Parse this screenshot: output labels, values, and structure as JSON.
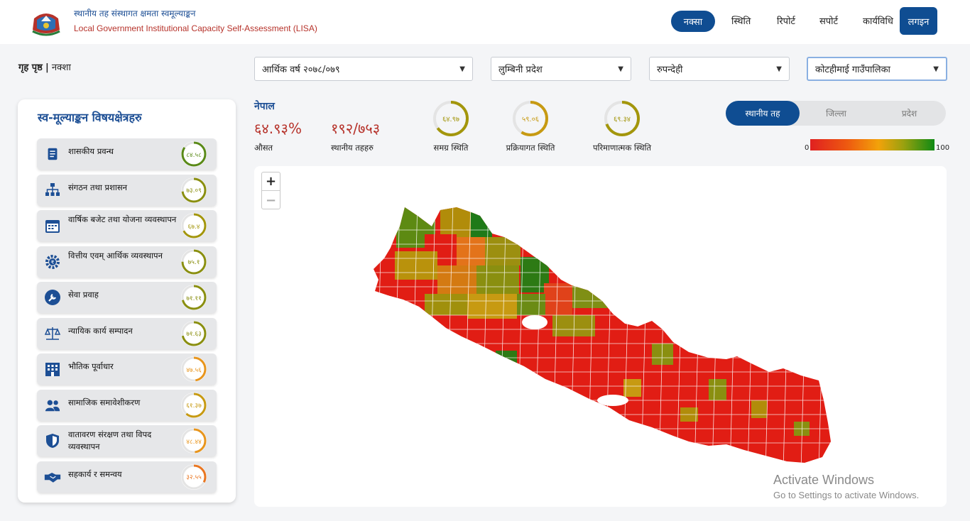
{
  "header": {
    "brand_np": "स्थानीय तह संस्थागत क्षमता स्वमूल्याङ्कन",
    "brand_en": "Local Government Institutional Capacity Self-Assessment (LISA)",
    "nav": [
      "नक्सा",
      "स्थिति",
      "रिपोर्ट",
      "सपोर्ट",
      "कार्यविधि"
    ],
    "login": "लगइन"
  },
  "breadcrumb": {
    "home": "गृह पृष्ठ",
    "sep": "|",
    "current": "नक्शा"
  },
  "filters": {
    "fiscal_year": "आर्थिक वर्ष २०७८/०७९",
    "province": "लुम्बिनी प्रदेश",
    "district": "रुपन्देही",
    "municipality": "कोटहीमाई गाउँपालिका"
  },
  "panel": {
    "title": "स्व-मूल्याङ्कन विषयक्षेत्रहरु",
    "items": [
      {
        "label": "शासकीय प्रवन्ध",
        "value": "८४.५८",
        "pct": 84.58,
        "color": "#5a8a18",
        "icon": "document-list-icon"
      },
      {
        "label": "संगठन तथा प्रशासन",
        "value": "७३.०९",
        "pct": 73.09,
        "color": "#8a8f10",
        "icon": "org-chart-icon"
      },
      {
        "label": "वार्षिक बजेट तथा योजना व्यवस्थापन",
        "value": "६७.४",
        "pct": 67.4,
        "color": "#a3960c",
        "icon": "calendar-icon"
      },
      {
        "label": "वित्तीय एवम् आर्थिक व्यवस्थापन",
        "value": "७५.१",
        "pct": 75.1,
        "color": "#8a8f10",
        "icon": "finance-gear-icon"
      },
      {
        "label": "सेवा प्रवाह",
        "value": "७१.११",
        "pct": 71.11,
        "color": "#8a8f10",
        "icon": "wrench-icon"
      },
      {
        "label": "न्यायिक कार्य सम्पादन",
        "value": "७१.६३",
        "pct": 71.63,
        "color": "#8a8f10",
        "icon": "scales-icon"
      },
      {
        "label": "भौतिक पूर्वाधार",
        "value": "४७.५६",
        "pct": 47.56,
        "color": "#e8951c",
        "icon": "building-icon"
      },
      {
        "label": "सामाजिक समावेशीकरण",
        "value": "६१.३७",
        "pct": 61.37,
        "color": "#c79a12",
        "icon": "people-icon"
      },
      {
        "label": "वातावरण संरक्षण तथा विपद व्यवस्थापन",
        "value": "४८.४४",
        "pct": 48.44,
        "color": "#e8951c",
        "icon": "shield-icon"
      },
      {
        "label": "सहकार्य र समन्वय",
        "value": "३२.५५",
        "pct": 32.55,
        "color": "#ea7620",
        "icon": "handshake-icon"
      }
    ]
  },
  "summary": {
    "title": "नेपाल",
    "average": "६४.९३%",
    "average_label": "औसत",
    "count": "१९२/७५३",
    "count_label": "स्थानीय तहहरु",
    "gauges": [
      {
        "label": "समग्र स्थिति",
        "value": "६४.९७",
        "pct": 64.97,
        "color": "#a3960c"
      },
      {
        "label": "प्रक्रियागत स्थिति",
        "value": "५९.०६",
        "pct": 59.06,
        "color": "#c79a12"
      },
      {
        "label": "परिमाणात्मक स्थिति",
        "value": "६९.३४",
        "pct": 69.34,
        "color": "#a3960c"
      }
    ]
  },
  "toggle": {
    "options": [
      "स्थानीय तह",
      "जिल्ला",
      "प्रदेश"
    ],
    "active": "स्थानीय तह"
  },
  "legend": {
    "min": "0",
    "max": "100"
  },
  "map": {
    "zoom_in": "+",
    "zoom_out": "−"
  },
  "watermark": {
    "line1": "Activate Windows",
    "line2": "Go to Settings to activate Windows."
  }
}
